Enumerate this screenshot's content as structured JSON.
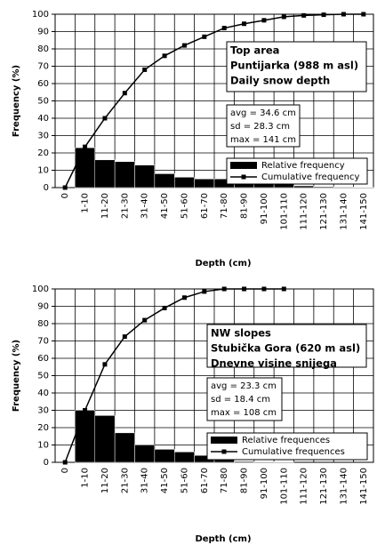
{
  "chart_data": [
    {
      "type": "combo",
      "text_box": [
        "Top area",
        "Puntijarka (988 m asl)",
        "Daily snow depth"
      ],
      "stats": [
        "avg = 34.6 cm",
        "sd = 28.3 cm",
        "max = 141 cm"
      ],
      "x_label": "Depth (cm)",
      "y_label": "Frequency (%)",
      "categories": [
        "0",
        "1-10",
        "11-20",
        "21-30",
        "31-40",
        "41-50",
        "51-60",
        "61-70",
        "71-80",
        "81-90",
        "91-100",
        "101-110",
        "111-120",
        "121-130",
        "131-140",
        "141-150"
      ],
      "series": [
        {
          "name": "Relative frequency",
          "type": "bar",
          "color": "#000000",
          "values": [
            0,
            23,
            16,
            15,
            13,
            8,
            6,
            5,
            5,
            3,
            2,
            2,
            1,
            0.5,
            0.3,
            0.2
          ]
        },
        {
          "name": "Cumulative frequency",
          "type": "line",
          "color": "#000000",
          "values": [
            0,
            23.5,
            40,
            54.5,
            68,
            76,
            82,
            87,
            92,
            94.5,
            96.5,
            98.5,
            99.3,
            99.7,
            100,
            100
          ]
        }
      ],
      "ylim": [
        0,
        100
      ],
      "yticks": [
        0,
        10,
        20,
        30,
        40,
        50,
        60,
        70,
        80,
        90,
        100
      ],
      "grid": true,
      "legend": "right"
    },
    {
      "type": "combo",
      "text_box": [
        "NW slopes",
        "Stubička Gora (620 m asl)",
        "Dnevne visine snijega"
      ],
      "stats": [
        "avg = 23.3 cm",
        "sd = 18.4 cm",
        "max = 108 cm"
      ],
      "x_label": "Depth (cm)",
      "y_label": "Frequency (%)",
      "categories": [
        "0",
        "1-10",
        "11-20",
        "21-30",
        "31-40",
        "41-50",
        "51-60",
        "61-70",
        "71-80",
        "81-90",
        "91-100",
        "101-110",
        "111-120",
        "121-130",
        "131-140",
        "141-150"
      ],
      "series": [
        {
          "name": "Relative frequences",
          "type": "bar",
          "color": "#000000",
          "values": [
            0,
            30,
            27,
            17,
            10,
            7.5,
            6,
            4,
            1.5,
            0.5,
            0.3,
            0.2,
            null,
            null,
            null,
            null
          ]
        },
        {
          "name": "Cumulative frequences",
          "type": "line",
          "color": "#000000",
          "values": [
            0,
            30,
            56.5,
            72.5,
            82,
            89,
            95,
            98.5,
            100,
            100,
            100,
            100,
            null,
            null,
            null,
            null
          ]
        }
      ],
      "ylim": [
        0,
        100
      ],
      "yticks": [
        0,
        10,
        20,
        30,
        40,
        50,
        60,
        70,
        80,
        90,
        100
      ],
      "grid": true,
      "legend": "right"
    }
  ]
}
